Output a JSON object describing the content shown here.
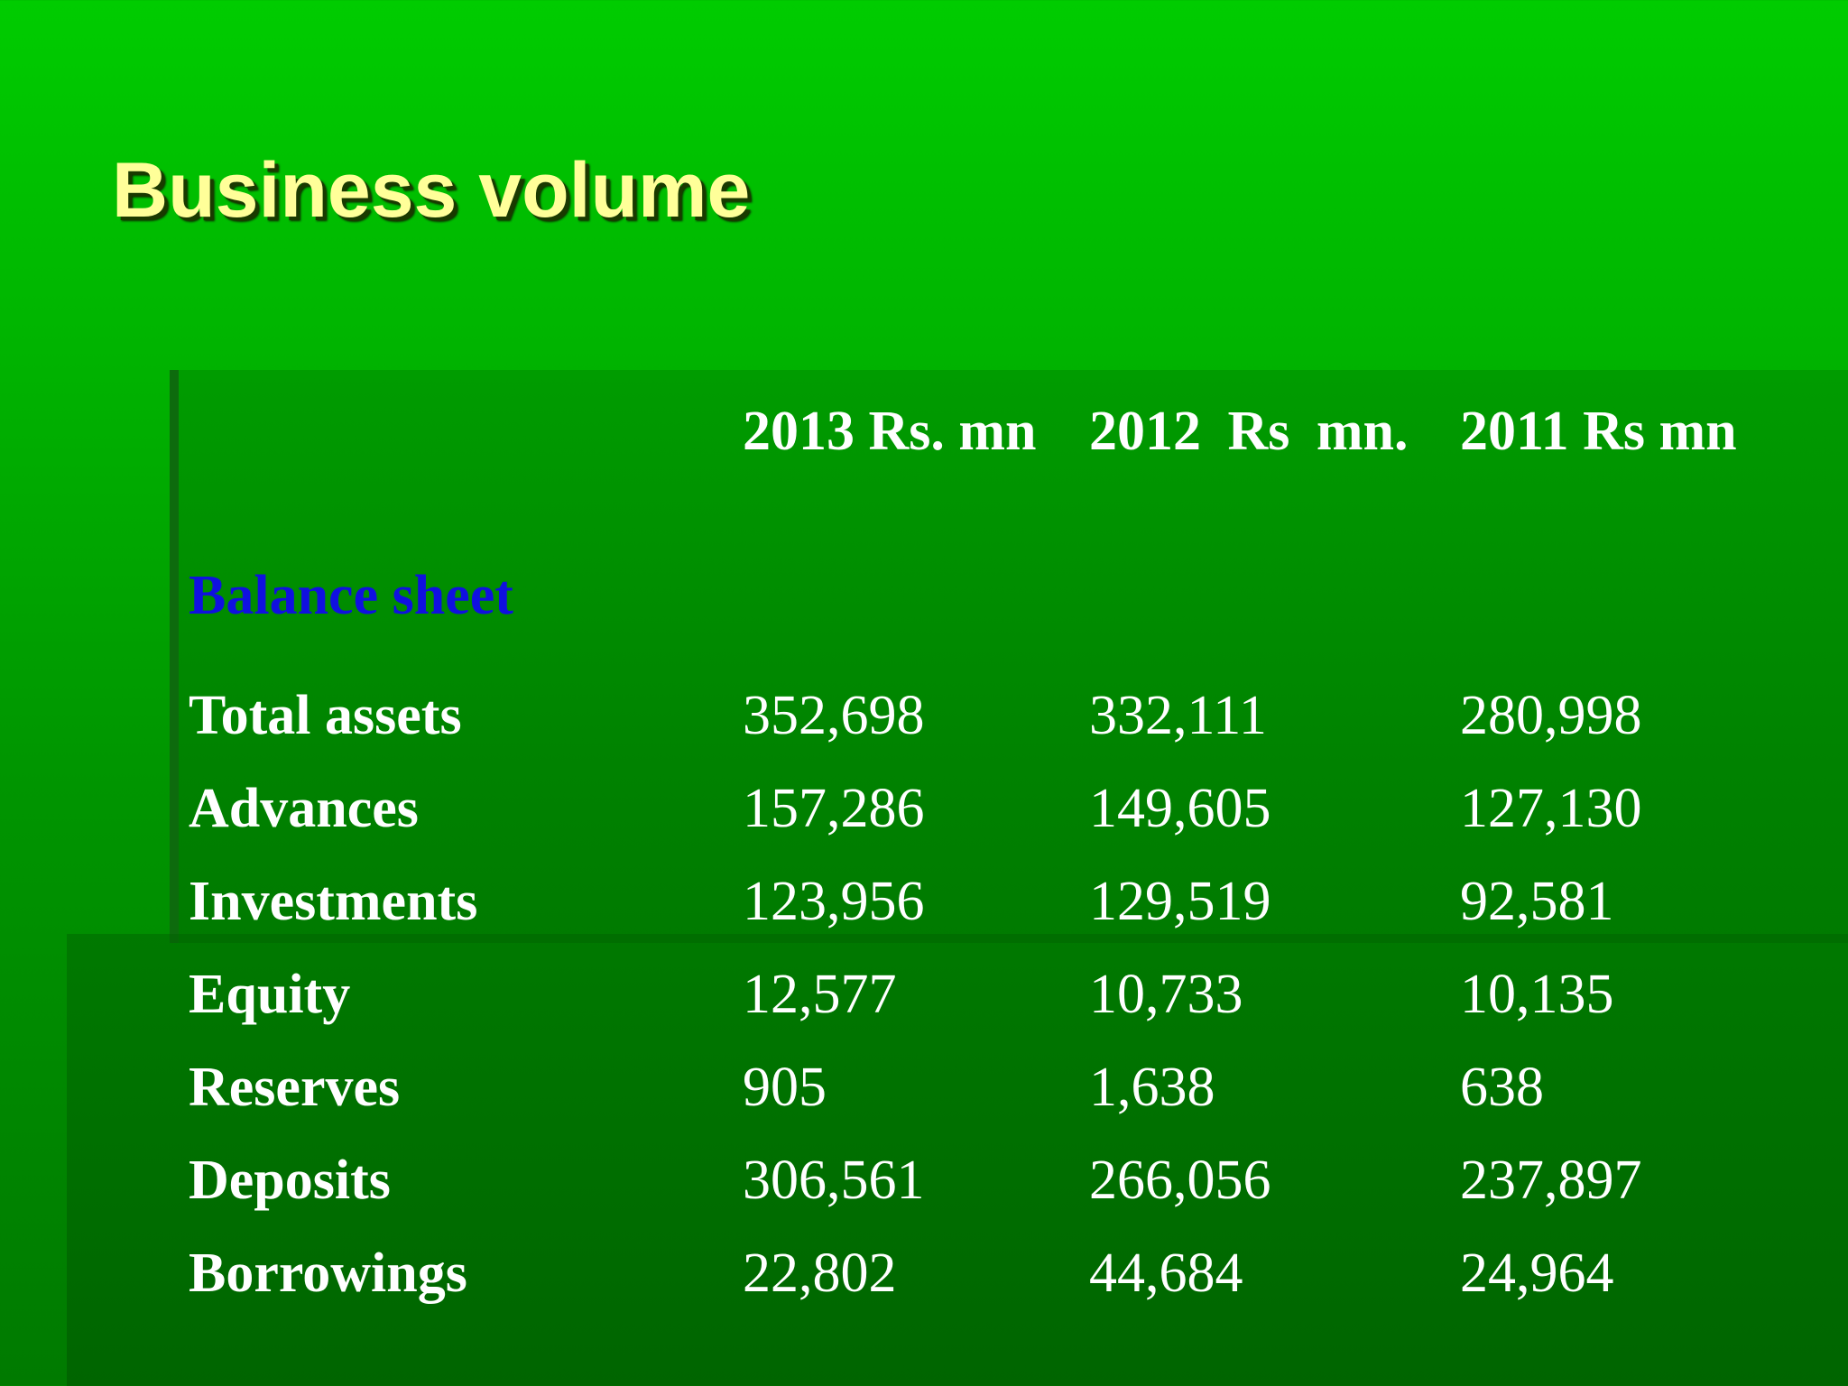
{
  "slide": {
    "title": "Business volume"
  },
  "table": {
    "headers": {
      "label": "",
      "y2013": "2013 Rs. mn",
      "y2012": "2012 Rs mn.",
      "y2011": "2011 Rs mn"
    },
    "section": "Balance sheet",
    "rows": [
      {
        "label": "Total assets",
        "y2013": "352,698",
        "y2012": "332,111",
        "y2011": "280,998"
      },
      {
        "label": "Advances",
        "y2013": "157,286",
        "y2012": "149,605",
        "y2011": "127,130"
      },
      {
        "label": "Investments",
        "y2013": "123,956",
        "y2012": "129,519",
        "y2011": "92,581"
      },
      {
        "label": "Equity",
        "y2013": "12,577",
        "y2012": "10,733",
        "y2011": "10,135"
      },
      {
        "label": "Reserves",
        "y2013": "905",
        "y2012": "1,638",
        "y2011": "638"
      },
      {
        "label": "Deposits",
        "y2013": "306,561",
        "y2012": "266,056",
        "y2011": "237,897"
      },
      {
        "label": "Borrowings",
        "y2013": "22,802",
        "y2012": "44,684",
        "y2011": "24,964"
      }
    ]
  },
  "colors": {
    "title": "#ffff99",
    "section": "#1010e0",
    "text": "#ffffff",
    "background_top": "#00cc00",
    "background_bottom": "#007a00"
  }
}
